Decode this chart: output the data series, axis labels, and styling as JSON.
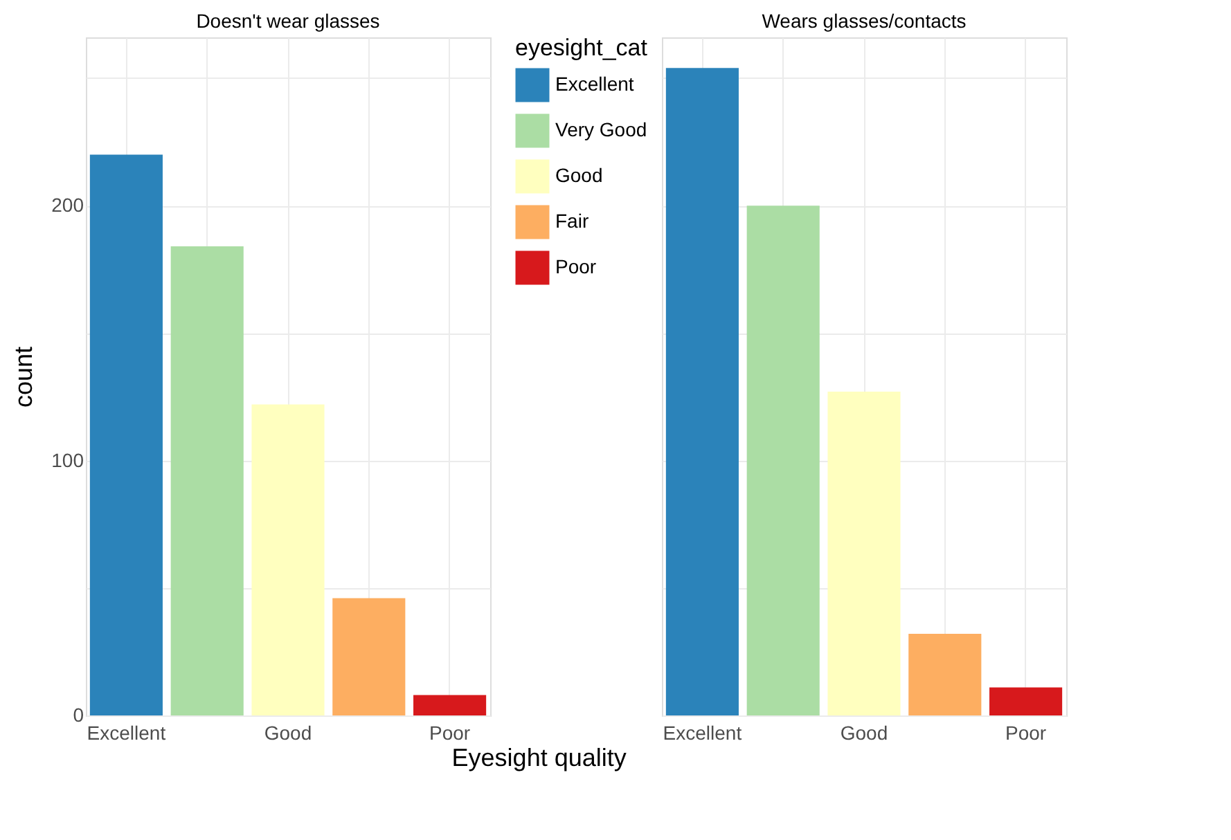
{
  "chart_data": [
    {
      "type": "bar",
      "title": "Doesn't wear glasses",
      "xlabel": "Eyesight quality",
      "ylabel": "count",
      "legend_title": "eyesight_cat",
      "legend": "right",
      "grid": true,
      "categories": [
        "Excellent",
        null,
        "Good",
        null,
        "Poor"
      ],
      "ylim": [
        0,
        266
      ],
      "yticks": [
        0,
        {
          "value": 50,
          "label": null
        },
        100,
        {
          "value": 150,
          "label": null
        },
        200,
        {
          "value": 250,
          "label": null
        }
      ],
      "series": [
        {
          "name": "Excellent",
          "color": "#2b83ba",
          "values": [
            220,
            null,
            null,
            null,
            null
          ]
        },
        {
          "name": "Very Good",
          "color": "#abdda4",
          "values": [
            null,
            184,
            null,
            null,
            null
          ]
        },
        {
          "name": "Good",
          "color": "#ffffbf",
          "values": [
            null,
            null,
            122,
            null,
            null
          ]
        },
        {
          "name": "Fair",
          "color": "#fdae61",
          "values": [
            null,
            null,
            null,
            46,
            null
          ]
        },
        {
          "name": "Poor",
          "color": "#d7191c",
          "values": [
            null,
            null,
            null,
            null,
            8
          ]
        }
      ]
    },
    {
      "type": "bar",
      "title": "Wears glasses/contacts",
      "grid": true,
      "tick_labels": "x",
      "categories": [
        "Excellent",
        null,
        "Good",
        null,
        "Poor"
      ],
      "ylim": [
        0,
        266
      ],
      "yticks": [
        0,
        {
          "value": 50,
          "label": null
        },
        100,
        {
          "value": 150,
          "label": null
        },
        200,
        {
          "value": 250,
          "label": null
        }
      ],
      "series": [
        {
          "color": "#2b83ba",
          "values": [
            254,
            null,
            null,
            null,
            null
          ]
        },
        {
          "color": "#abdda4",
          "values": [
            null,
            200,
            null,
            null,
            null
          ]
        },
        {
          "color": "#ffffbf",
          "values": [
            null,
            null,
            127,
            null,
            null
          ]
        },
        {
          "color": "#fdae61",
          "values": [
            null,
            null,
            null,
            32,
            null
          ]
        },
        {
          "color": "#d7191c",
          "values": [
            null,
            null,
            null,
            null,
            11
          ]
        }
      ]
    }
  ]
}
